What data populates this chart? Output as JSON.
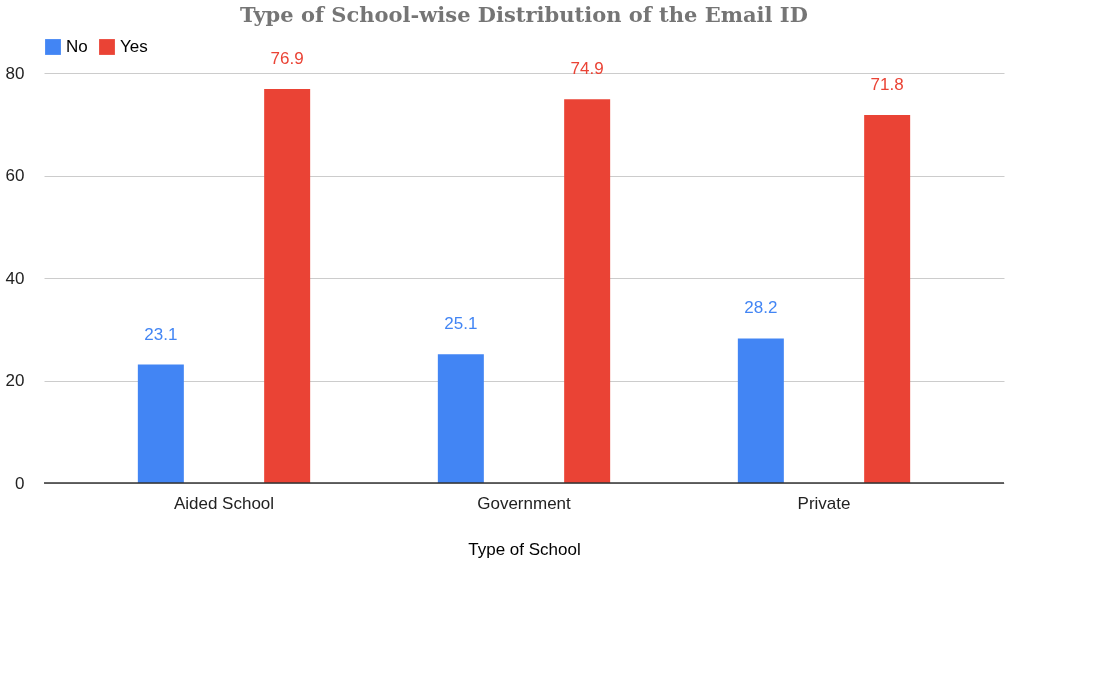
{
  "chart_data": {
    "type": "bar",
    "title": "Type of School-wise Distribution of the Email ID",
    "xlabel": "Type of School",
    "categories": [
      "Aided School",
      "Government",
      "Private"
    ],
    "series": [
      {
        "name": "No",
        "color": "#4285f4",
        "values": [
          23.1,
          25.1,
          28.2
        ]
      },
      {
        "name": "Yes",
        "color": "#ea4335",
        "values": [
          76.9,
          74.9,
          71.8
        ]
      }
    ],
    "ylim": [
      0,
      80
    ],
    "yticks": [
      0,
      20,
      40,
      60,
      80
    ],
    "grid": "y",
    "legend": "top",
    "data_labels": true
  }
}
